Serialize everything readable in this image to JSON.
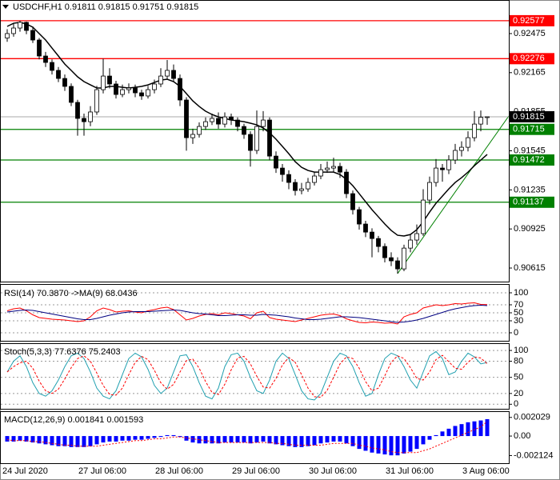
{
  "chart_data": [
    {
      "type": "candlestick",
      "title": "USDCHF,H1  0.91811 0.91815 0.91751 0.91815",
      "categories": [
        "24 Jul 2020",
        null,
        null,
        null,
        null,
        null,
        null,
        null,
        null,
        null,
        null,
        "27 Jul 06:00",
        null,
        null,
        null,
        null,
        null,
        null,
        null,
        null,
        null,
        null,
        null,
        "28 Jul 06:00",
        null,
        null,
        null,
        null,
        null,
        null,
        null,
        null,
        null,
        null,
        null,
        "29 Jul 06:00",
        null,
        null,
        null,
        null,
        null,
        null,
        null,
        null,
        null,
        null,
        null,
        "30 Jul 06:00",
        null,
        null,
        null,
        null,
        null,
        null,
        null,
        null,
        null,
        null,
        null,
        "31 Jul 06:00",
        null,
        null,
        null,
        null,
        null,
        null,
        null,
        null,
        null,
        null,
        null,
        "3 Aug 06:00",
        null,
        null,
        null,
        null
      ],
      "open": [
        0.9244,
        0.92475,
        0.92519,
        0.92564,
        0.925,
        0.92424,
        0.92297,
        0.92246,
        0.92183,
        0.92119,
        0.92056,
        0.91929,
        0.91802,
        0.91776,
        0.91853,
        0.9203,
        0.92138,
        0.92075,
        0.91992,
        0.9203,
        0.92043,
        0.92005,
        0.9198,
        0.9203,
        0.92075,
        0.92138,
        0.92183,
        0.92119,
        0.91948,
        0.91649,
        0.91675,
        0.91738,
        0.91776,
        0.91802,
        0.91757,
        0.91814,
        0.91789,
        0.91738,
        0.91675,
        0.91548,
        0.91738,
        0.91789,
        0.91503,
        0.91408,
        0.91357,
        0.91294,
        0.9123,
        0.91243,
        0.91294,
        0.91345,
        0.91395,
        0.91408,
        0.91421,
        0.91376,
        0.91205,
        0.91078,
        0.90964,
        0.909,
        0.90849,
        0.90786,
        0.90697,
        0.90672,
        0.90608,
        0.90773,
        0.90837,
        0.90888,
        0.91154,
        0.91294,
        0.91408,
        0.91395,
        0.91472,
        0.91548,
        0.91573,
        0.91649,
        0.91757,
        0.91811
      ],
      "high": [
        0.9251,
        0.9256,
        0.92577,
        0.9257,
        0.9253,
        0.9244,
        0.9233,
        0.9227,
        0.9221,
        0.9215,
        0.9208,
        0.9195,
        0.9184,
        0.919,
        0.9206,
        0.92276,
        0.922,
        0.921,
        0.9207,
        0.9208,
        0.9207,
        0.9203,
        0.9206,
        0.9211,
        0.922,
        0.92265,
        0.9223,
        0.9215,
        0.9197,
        0.9172,
        0.9177,
        0.9181,
        0.9184,
        0.9185,
        0.9185,
        0.9184,
        0.9181,
        0.9176,
        0.917,
        0.91865,
        0.9186,
        0.9181,
        0.9154,
        0.9144,
        0.9139,
        0.9132,
        0.9129,
        0.9133,
        0.9138,
        0.9144,
        0.9146,
        0.9149,
        0.9145,
        0.914,
        0.9123,
        0.911,
        0.9099,
        0.9093,
        0.9087,
        0.9081,
        0.9074,
        0.907,
        0.908,
        0.9088,
        0.9096,
        0.9124,
        0.9134,
        0.9148,
        0.9144,
        0.9151,
        0.916,
        0.9162,
        0.917,
        0.9186,
        0.91865,
        0.91815
      ],
      "low": [
        0.9241,
        0.9245,
        0.9249,
        0.9247,
        0.924,
        0.9227,
        0.9221,
        0.9215,
        0.9209,
        0.9202,
        0.919,
        0.91665,
        0.91665,
        0.9174,
        0.9183,
        0.92,
        0.9204,
        0.9196,
        0.9197,
        0.92,
        0.9197,
        0.9195,
        0.9196,
        0.92,
        0.9205,
        0.9211,
        0.9209,
        0.919,
        0.91546,
        0.916,
        0.9165,
        0.9171,
        0.9175,
        0.9172,
        0.9173,
        0.9175,
        0.917,
        0.9164,
        0.9142,
        0.9152,
        0.917,
        0.9147,
        0.9137,
        0.913,
        0.9124,
        0.9119,
        0.912,
        0.9122,
        0.9127,
        0.9132,
        0.9137,
        0.9138,
        0.9133,
        0.9117,
        0.9104,
        0.9092,
        0.9086,
        0.907,
        0.9074,
        0.9066,
        0.9063,
        0.9057,
        0.9059,
        0.9074,
        0.908,
        0.9087,
        0.9112,
        0.9126,
        0.913,
        0.9136,
        0.9144,
        0.915,
        0.9154,
        0.9162,
        0.917,
        0.91751
      ],
      "close": [
        0.92475,
        0.92519,
        0.92564,
        0.925,
        0.92424,
        0.92297,
        0.92246,
        0.92183,
        0.92119,
        0.92056,
        0.91929,
        0.91802,
        0.91776,
        0.91853,
        0.9203,
        0.92138,
        0.92075,
        0.91992,
        0.9203,
        0.92043,
        0.92005,
        0.9198,
        0.9203,
        0.92075,
        0.92138,
        0.92183,
        0.92119,
        0.91948,
        0.91649,
        0.91675,
        0.91738,
        0.91776,
        0.91802,
        0.91757,
        0.91814,
        0.91789,
        0.91738,
        0.91675,
        0.91548,
        0.91738,
        0.91789,
        0.91503,
        0.91408,
        0.91357,
        0.91294,
        0.9123,
        0.91243,
        0.91294,
        0.91345,
        0.91395,
        0.91408,
        0.91421,
        0.91376,
        0.91205,
        0.91078,
        0.90964,
        0.909,
        0.90849,
        0.90786,
        0.90697,
        0.90672,
        0.90608,
        0.90773,
        0.90837,
        0.90888,
        0.91154,
        0.91294,
        0.91408,
        0.91395,
        0.91472,
        0.91548,
        0.91573,
        0.91649,
        0.91757,
        0.91811,
        0.91815
      ],
      "up_color": "#ffffff",
      "down_color": "#000000",
      "overlay": {
        "color": "#000000",
        "values": [
          0.92532,
          0.92557,
          0.92564,
          0.92551,
          0.92526,
          0.92475,
          0.92424,
          0.9236,
          0.92297,
          0.92233,
          0.92183,
          0.92132,
          0.92094,
          0.92068,
          0.92043,
          0.92043,
          0.92056,
          0.92056,
          0.92049,
          0.92043,
          0.92049,
          0.92056,
          0.92068,
          0.92087,
          0.92106,
          0.92113,
          0.92094,
          0.92056,
          0.91999,
          0.91941,
          0.91897,
          0.91859,
          0.91833,
          0.91814,
          0.91802,
          0.91789,
          0.91783,
          0.91776,
          0.91764,
          0.91751,
          0.91726,
          0.91687,
          0.91637,
          0.9158,
          0.91522,
          0.91459,
          0.91414,
          0.91389,
          0.91376,
          0.91376,
          0.91376,
          0.91376,
          0.91357,
          0.91319,
          0.91268,
          0.91205,
          0.91141,
          0.91078,
          0.91021,
          0.90964,
          0.90913,
          0.90875,
          0.90869,
          0.90881,
          0.90919,
          0.90983,
          0.91059,
          0.91129,
          0.91186,
          0.91243,
          0.91294,
          0.91332,
          0.91376,
          0.91427,
          0.91472,
          0.91516
        ]
      },
      "levels": [
        {
          "value": 0.92577,
          "color": "#ff0000"
        },
        {
          "value": 0.92276,
          "color": "#ff0000"
        },
        {
          "value": 0.91715,
          "color": "#008000"
        },
        {
          "value": 0.91472,
          "color": "#008000"
        },
        {
          "value": 0.91137,
          "color": "#008000"
        }
      ],
      "last_price": 0.91815,
      "ylim": [
        0.9052,
        0.92716
      ],
      "yticks": [
        0.92475,
        0.92165,
        0.91855,
        0.91545,
        0.91235,
        0.90925,
        0.90615
      ]
    },
    {
      "type": "line",
      "title": "RSI(14) 70.3870 ->MA(9) 68.0436",
      "series": [
        {
          "color": "#ff0000",
          "values": [
            55,
            60,
            62,
            55,
            45,
            38,
            36,
            34,
            33,
            32,
            30,
            28,
            30,
            40,
            55,
            62,
            58,
            52,
            54,
            55,
            52,
            50,
            55,
            58,
            62,
            64,
            58,
            45,
            32,
            36,
            42,
            46,
            48,
            45,
            50,
            48,
            45,
            42,
            35,
            50,
            54,
            38,
            34,
            32,
            30,
            28,
            32,
            36,
            40,
            44,
            46,
            47,
            43,
            35,
            30,
            26,
            25,
            27,
            26,
            24,
            25,
            22,
            40,
            46,
            50,
            62,
            66,
            70,
            68,
            70,
            73,
            72,
            74,
            75,
            71,
            70.387
          ]
        },
        {
          "color": "#000080",
          "values": [
            52,
            54,
            56,
            57,
            56,
            53,
            50,
            47,
            44,
            41,
            38,
            35,
            33,
            33,
            36,
            40,
            44,
            47,
            50,
            52,
            53,
            53,
            53,
            54,
            55,
            56,
            57,
            56,
            53,
            50,
            48,
            47,
            45,
            43,
            43,
            44,
            45,
            45,
            44,
            44,
            46,
            45,
            44,
            42,
            40,
            37,
            35,
            33,
            33,
            34,
            36,
            38,
            40,
            40,
            39,
            38,
            36,
            34,
            32,
            30,
            28,
            26,
            27,
            29,
            32,
            36,
            41,
            46,
            51,
            56,
            60,
            63,
            66,
            68,
            69,
            68.0436
          ]
        }
      ],
      "ylim": [
        -16,
        118
      ],
      "yticks": [
        100,
        70,
        50,
        30,
        0
      ],
      "grid": true
    },
    {
      "type": "line",
      "title": "Stoch(5,3,3) 77.6376 75.2403",
      "series": [
        {
          "color": "#20a0b0",
          "values": [
            60,
            80,
            90,
            70,
            40,
            20,
            15,
            25,
            45,
            70,
            90,
            95,
            85,
            60,
            30,
            15,
            10,
            25,
            55,
            85,
            95,
            88,
            65,
            35,
            20,
            30,
            60,
            90,
            92,
            70,
            40,
            15,
            10,
            30,
            70,
            92,
            95,
            80,
            50,
            25,
            20,
            45,
            80,
            95,
            85,
            55,
            25,
            10,
            8,
            20,
            50,
            80,
            95,
            90,
            70,
            40,
            15,
            20,
            55,
            85,
            95,
            90,
            70,
            45,
            30,
            60,
            90,
            98,
            85,
            55,
            60,
            80,
            95,
            88,
            75,
            77.6376
          ]
        },
        {
          "color": "#ff0000",
          "dash": true,
          "values": [
            60,
            70,
            77,
            80,
            67,
            43,
            25,
            20,
            28,
            47,
            68,
            85,
            90,
            80,
            58,
            35,
            18,
            17,
            30,
            55,
            78,
            89,
            83,
            63,
            40,
            28,
            37,
            60,
            81,
            84,
            67,
            42,
            22,
            18,
            37,
            64,
            86,
            89,
            75,
            52,
            32,
            30,
            48,
            73,
            87,
            78,
            55,
            30,
            14,
            13,
            26,
            50,
            75,
            88,
            85,
            67,
            42,
            25,
            30,
            53,
            78,
            90,
            85,
            68,
            48,
            45,
            60,
            83,
            91,
            79,
            67,
            65,
            78,
            88,
            86,
            75.2403
          ]
        }
      ],
      "ylim": [
        -7,
        112
      ],
      "yticks": [
        100,
        80,
        50,
        20,
        0
      ],
      "grid": true
    },
    {
      "type": "macd",
      "title": "MACD(12,26,9) 0.001841 0.001593",
      "histogram": {
        "color": "#0000ff",
        "values": [
          -0.0006,
          -0.0006,
          -0.0005,
          -0.0006,
          -0.0007,
          -0.0008,
          -0.0009,
          -0.001,
          -0.0011,
          -0.0011,
          -0.0012,
          -0.0012,
          -0.0012,
          -0.0011,
          -0.0009,
          -0.0007,
          -0.0006,
          -0.0006,
          -0.0005,
          -0.0005,
          -0.0004,
          -0.0004,
          -0.0003,
          -0.0002,
          -0.0001,
          0.0001,
          0.0001,
          -0.0001,
          -0.0005,
          -0.0007,
          -0.0008,
          -0.0008,
          -0.0008,
          -0.0008,
          -0.0007,
          -0.0007,
          -0.0007,
          -0.0007,
          -0.0008,
          -0.0007,
          -0.0006,
          -0.0008,
          -0.0009,
          -0.001,
          -0.0011,
          -0.0012,
          -0.0012,
          -0.0011,
          -0.001,
          -0.0008,
          -0.0007,
          -0.0006,
          -0.0006,
          -0.0008,
          -0.0011,
          -0.0014,
          -0.0016,
          -0.0018,
          -0.0019,
          -0.002,
          -0.0021,
          -0.0021,
          -0.0019,
          -0.0017,
          -0.0014,
          -0.0009,
          -0.0004,
          0.0001,
          0.0005,
          0.0008,
          0.0011,
          0.0013,
          0.0015,
          0.0016,
          0.0017,
          0.001841
        ]
      },
      "signal": {
        "color": "#ff0000",
        "values": [
          -0.0004,
          -0.0005,
          -0.0005,
          -0.0005,
          -0.0006,
          -0.0006,
          -0.0007,
          -0.0008,
          -0.0009,
          -0.001,
          -0.001,
          -0.0011,
          -0.0011,
          -0.0011,
          -0.0011,
          -0.001,
          -0.0009,
          -0.0008,
          -0.0007,
          -0.0006,
          -0.0005,
          -0.0005,
          -0.0004,
          -0.0003,
          -0.0003,
          -0.0002,
          -0.0001,
          -0.0001,
          -0.0002,
          -0.0003,
          -0.0004,
          -0.0005,
          -0.0006,
          -0.0007,
          -0.0007,
          -0.0007,
          -0.0007,
          -0.0007,
          -0.0007,
          -0.0007,
          -0.0007,
          -0.0007,
          -0.0008,
          -0.0008,
          -0.0009,
          -0.001,
          -0.001,
          -0.001,
          -0.001,
          -0.001,
          -0.0009,
          -0.0008,
          -0.0008,
          -0.0008,
          -0.0008,
          -0.001,
          -0.0011,
          -0.0013,
          -0.0014,
          -0.0015,
          -0.0017,
          -0.0018,
          -0.0018,
          -0.0018,
          -0.0018,
          -0.0016,
          -0.0014,
          -0.0011,
          -0.0008,
          -0.0005,
          -0.0002,
          0.0001,
          0.0004,
          0.0007,
          0.001,
          0.001593
        ]
      },
      "ylim": [
        -0.00287,
        0.00262
      ],
      "yticks": [
        0.002029,
        {
          "value": 0,
          "label": "0.00"
        },
        -0.002124
      ]
    }
  ]
}
